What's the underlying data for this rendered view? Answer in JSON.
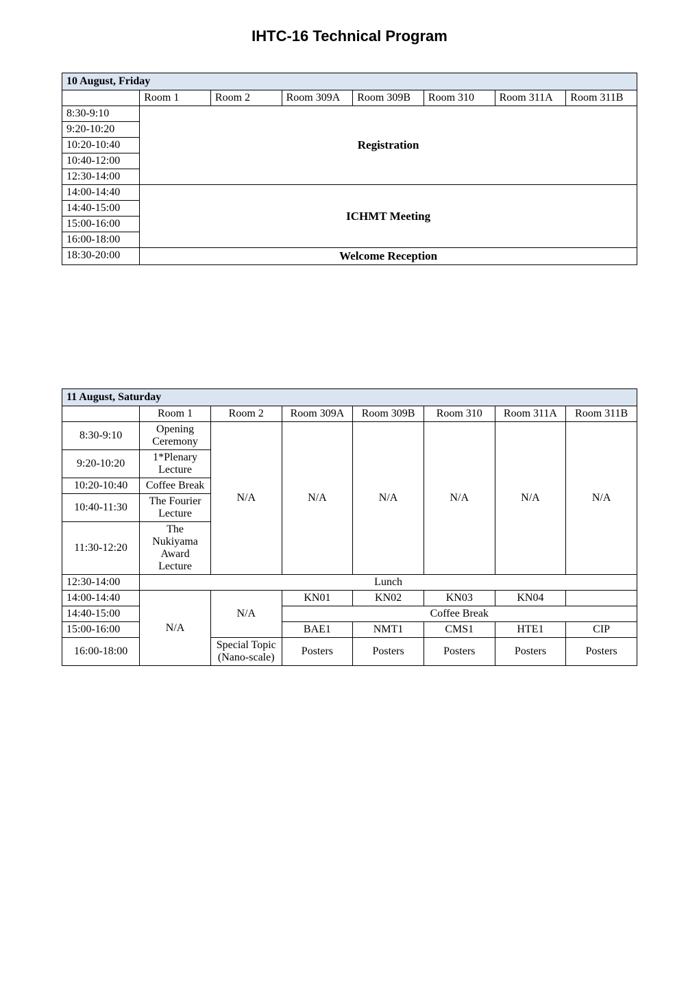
{
  "page_title": "IHTC-16 Technical Program",
  "table1": {
    "date_header": "10 August, Friday",
    "columns": [
      "",
      "Room 1",
      "Room 2",
      "Room 309A",
      "Room 309B",
      "Room 310",
      "Room 311A",
      "Room 311B"
    ],
    "time_slots_block1": [
      "8:30-9:10",
      "9:20-10:20",
      "10:20-10:40",
      "10:40-12:00",
      "12:30-14:00"
    ],
    "block1_label": "Registration",
    "time_slots_block2": [
      "14:00-14:40",
      "14:40-15:00",
      "15:00-16:00",
      "16:00-18:00"
    ],
    "block2_label": "ICHMT Meeting",
    "time_slot_block3": "18:30-20:00",
    "block3_label": "Welcome Reception"
  },
  "table2": {
    "date_header": "11 August, Saturday",
    "columns": [
      "",
      "Room 1",
      "Room 2",
      "Room 309A",
      "Room 309B",
      "Room 310",
      "Room 311A",
      "Room 311B"
    ],
    "morning": {
      "rows": [
        {
          "time": "8:30-9:10",
          "room1": "Opening Ceremony"
        },
        {
          "time": "9:20-10:20",
          "room1": "1*Plenary Lecture"
        },
        {
          "time": "10:20-10:40",
          "room1": "Coffee Break"
        },
        {
          "time": "10:40-11:30",
          "room1": "The Fourier Lecture"
        },
        {
          "time": "11:30-12:20",
          "room1": "The Nukiyama Award Lecture"
        }
      ],
      "na_cells": [
        "N/A",
        "N/A",
        "N/A",
        "N/A",
        "N/A",
        "N/A"
      ]
    },
    "lunch": {
      "time": "12:30-14:00",
      "label": "Lunch"
    },
    "afternoon": {
      "row_kn": {
        "time": "14:00-14:40",
        "cells": [
          "KN01",
          "KN02",
          "KN03",
          "KN04",
          ""
        ]
      },
      "row_coffee": {
        "time": "14:40-15:00",
        "room2": "N/A",
        "label": "Coffee Break"
      },
      "row_sessions": {
        "time": "15:00-16:00",
        "cells": [
          "BAE1",
          "NMT1",
          "CMS1",
          "HTE1",
          "CIP"
        ]
      },
      "row_posters": {
        "time": "16:00-18:00",
        "room1": "N/A",
        "room2": "Special Topic (Nano-scale)",
        "cells": [
          "Posters",
          "Posters",
          "Posters",
          "Posters",
          "Posters"
        ]
      }
    }
  }
}
